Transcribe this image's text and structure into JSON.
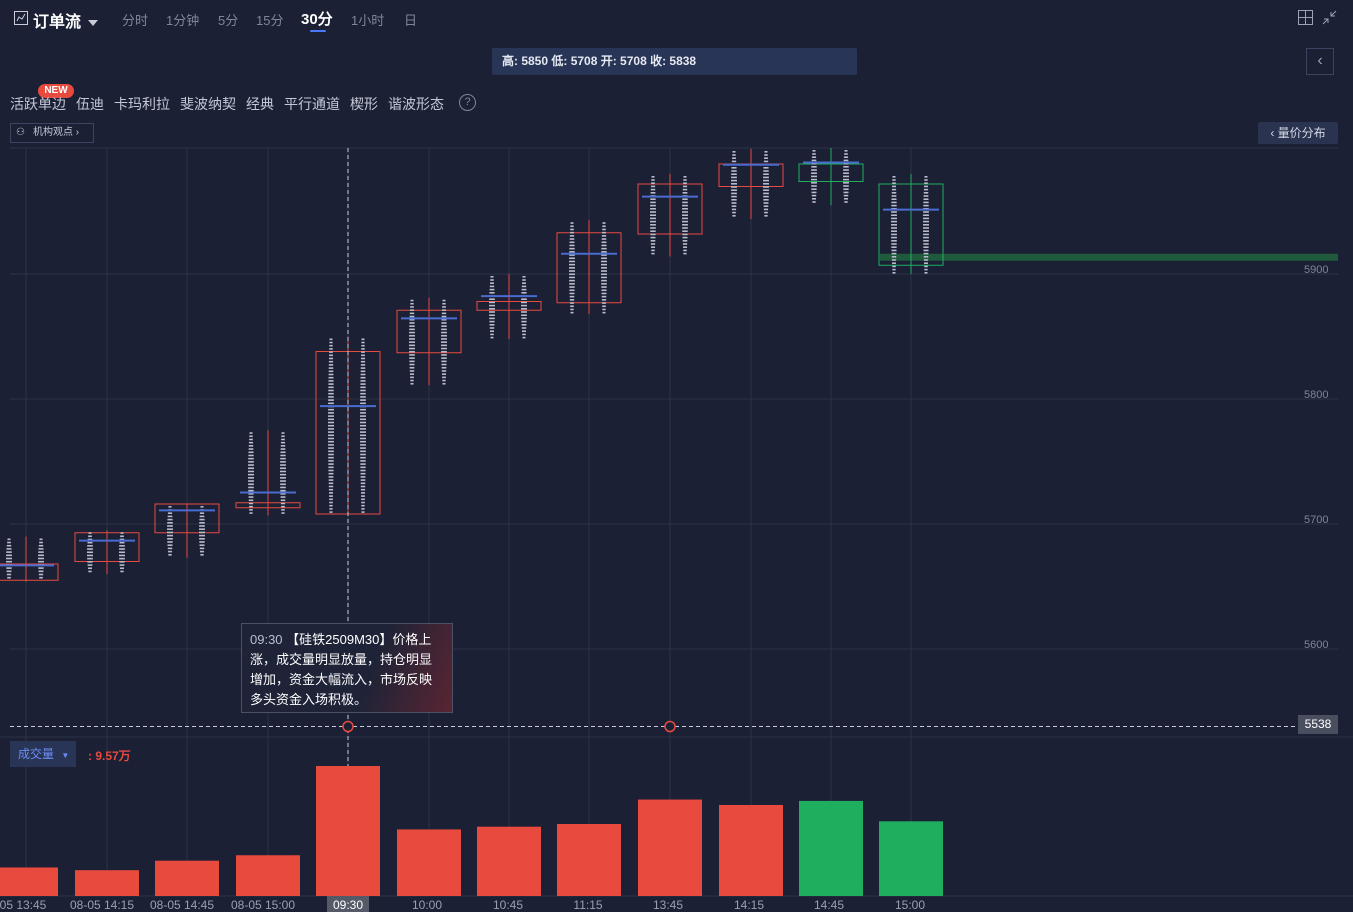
{
  "topbar": {
    "title": "订单流",
    "timeframes": [
      "分时",
      "1分钟",
      "5分",
      "15分",
      "30分",
      "1小时",
      "日"
    ],
    "active_timeframe": "30分"
  },
  "ohlc_info": "高: 5850 低: 5708 开: 5708 收: 5838",
  "tools": {
    "new_badge": "NEW",
    "items": [
      "活跃单边",
      "伍迪",
      "卡玛利拉",
      "斐波纳契",
      "经典",
      "平行通道",
      "楔形",
      "谐波形态"
    ],
    "help": "?"
  },
  "institution_view": "机构观点",
  "price_distribution": "量价分布",
  "tooltip": {
    "time": "09:30",
    "text": "【硅铁2509M30】价格上涨，成交量明显放量，持仓明显增加，资金大幅流入，市场反映多头资金入场积极。"
  },
  "cursor_price": "5538",
  "volume": {
    "selector": "成交量",
    "value": ": 9.57万"
  },
  "y_axis": [
    "5900",
    "5800",
    "5700",
    "5600"
  ],
  "x_axis": [
    "05 13:45",
    "08-05 14:15",
    "08-05 14:45",
    "08-05 15:00",
    "09:30",
    "10:00",
    "10:45",
    "11:15",
    "13:45",
    "14:15",
    "14:45",
    "15:00"
  ],
  "colors": {
    "up": "#e84a3e",
    "down": "#1fae5e",
    "background": "#1b2035",
    "accent": "#4a78ff"
  },
  "chart_data": {
    "type": "candlestick",
    "categories": [
      "05 13:45",
      "08-05 14:15",
      "08-05 14:45",
      "08-05 15:00",
      "09:30",
      "10:00",
      "10:45",
      "11:15",
      "13:45",
      "14:15",
      "14:45",
      "15:00"
    ],
    "candles": [
      {
        "open": 5655,
        "close": 5668,
        "high": 5690,
        "low": 5654
      },
      {
        "open": 5670,
        "close": 5693,
        "high": 5695,
        "low": 5660
      },
      {
        "open": 5693,
        "close": 5716,
        "high": 5716,
        "low": 5673
      },
      {
        "open": 5713,
        "close": 5717,
        "high": 5775,
        "low": 5707
      },
      {
        "open": 5708,
        "close": 5838,
        "high": 5850,
        "low": 5708
      },
      {
        "open": 5837,
        "close": 5871,
        "high": 5881,
        "low": 5811
      },
      {
        "open": 5871,
        "close": 5878,
        "high": 5900,
        "low": 5848
      },
      {
        "open": 5877,
        "close": 5933,
        "high": 5943,
        "low": 5868
      },
      {
        "open": 5932,
        "close": 5972,
        "high": 5980,
        "low": 5914
      },
      {
        "open": 5970,
        "close": 5988,
        "high": 6000,
        "low": 5944
      },
      {
        "open": 5988,
        "close": 5974,
        "high": 6010,
        "low": 5955
      },
      {
        "open": 5972,
        "close": 5907,
        "high": 5980,
        "low": 5900
      }
    ],
    "volume": [
      2.1,
      1.9,
      2.6,
      3.0,
      9.57,
      4.9,
      5.1,
      5.3,
      7.1,
      6.7,
      7.0,
      5.5
    ],
    "ylim": [
      5528,
      6005
    ],
    "ylabel": "",
    "xlabel": ""
  }
}
